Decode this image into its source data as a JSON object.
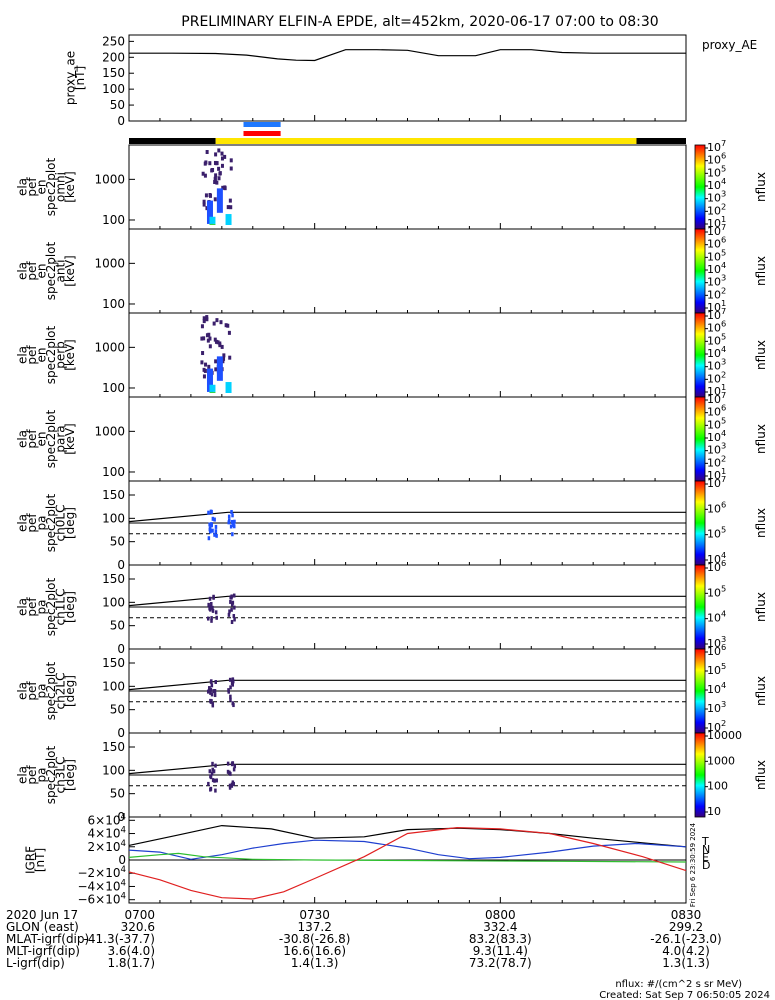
{
  "title": "PRELIMINARY ELFIN-A EPDE, alt=452km, 2020-06-17 07:00 to 08:30",
  "colors": {
    "bar_black": "#000000",
    "bar_yellow": "#ffe600",
    "bar_blue": "#1e78ff",
    "bar_red": "#ff0000",
    "spec_dark": "#3a1f6b",
    "spec_blue": "#1e50ff",
    "spec_cyan": "#00d2ff",
    "spec_green": "#34d24a",
    "grf_total": "#000000",
    "grf_n": "#1f3fcf",
    "grf_e": "#2fbf2f",
    "grf_d": "#e02020"
  },
  "panel_labels": [
    [
      "proxy_ae",
      "[nT]"
    ],
    [
      "ela",
      "pef",
      "en",
      "spec2plot",
      "omni",
      "[keV]"
    ],
    [
      "ela",
      "pef",
      "en",
      "spec2plot",
      "anti",
      "[keV]"
    ],
    [
      "ela",
      "pef",
      "en",
      "spec2plot",
      "perp",
      "[keV]"
    ],
    [
      "ela",
      "pef",
      "en",
      "spec2plot",
      "para",
      "[keV]"
    ],
    [
      "ela",
      "pef",
      "pa",
      "spec2plot",
      "ch0LC",
      "[deg]"
    ],
    [
      "ela",
      "pef",
      "pa",
      "spec2plot",
      "ch1LC",
      "[deg]"
    ],
    [
      "ela",
      "pef",
      "pa",
      "spec2plot",
      "ch2LC",
      "[deg]"
    ],
    [
      "ela",
      "pef",
      "pa",
      "spec2plot",
      "ch3LC",
      "[deg]"
    ],
    [
      "IGRF",
      "[nT]"
    ]
  ],
  "right_labels": {
    "proxy_ae": "proxy_AE",
    "nflux": "nflux",
    "grf_legend": [
      "T",
      "N",
      "E",
      "D"
    ],
    "side_stamp": "Fri Sep  6 23:30:59 2024"
  },
  "colorbars": [
    {
      "labels": [
        "10^7",
        "10^6",
        "10^5",
        "10^4",
        "10^3",
        "10^2",
        "10^1"
      ]
    },
    {
      "labels": [
        "10^7",
        "10^6",
        "10^5",
        "10^4",
        "10^3",
        "10^2",
        "10^1"
      ]
    },
    {
      "labels": [
        "10^7",
        "10^6",
        "10^5",
        "10^4",
        "10^3",
        "10^2",
        "10^1"
      ]
    },
    {
      "labels": [
        "10^7",
        "10^6",
        "10^5",
        "10^4",
        "10^3",
        "10^2",
        "10^1"
      ]
    },
    {
      "labels": [
        "10^7",
        "10^6",
        "10^5",
        "10^4"
      ]
    },
    {
      "labels": [
        "10^6",
        "10^5",
        "10^4",
        "10^3"
      ]
    },
    {
      "labels": [
        "10^6",
        "10^5",
        "10^4",
        "10^3",
        "10^2"
      ]
    },
    {
      "labels": [
        "10000",
        "1000",
        "100",
        "10"
      ]
    }
  ],
  "chart_data": {
    "type": "multi-panel",
    "x_ticks": [
      "0700",
      "0730",
      "0800",
      "0830"
    ],
    "proxy_ae": {
      "ylabel": "proxy_ae [nT]",
      "ylim": [
        0,
        270
      ],
      "yticks": [
        "250",
        "200",
        "150",
        "100",
        "50",
        "0"
      ],
      "t": [
        0,
        7,
        14,
        19,
        24,
        27,
        30,
        35,
        40,
        45,
        50,
        56,
        60,
        65,
        70,
        75,
        80,
        85,
        90
      ],
      "values": [
        213,
        213,
        212,
        207,
        195,
        191,
        190,
        224,
        224,
        222,
        205,
        205,
        224,
        224,
        215,
        213,
        213,
        213,
        213
      ]
    },
    "energy_panels": {
      "ylabel_unit": "[keV]",
      "yticks": [
        "1000",
        "100"
      ],
      "ylim": [
        60,
        7000
      ],
      "active_interval_min": [
        11.5,
        16.5
      ]
    },
    "pitch_angle_panels": {
      "ylabel_unit": "[deg]",
      "yticks": [
        "150",
        "100",
        "50",
        "0"
      ],
      "ylim": [
        0,
        180
      ],
      "loss_cone_line": {
        "t": [
          0,
          16,
          90
        ],
        "values": [
          93,
          113,
          113
        ]
      },
      "horizontal_lines": [
        113,
        90
      ],
      "dashed_line": 67
    },
    "igrf": {
      "ylabel": "IGRF [nT]",
      "yticks": [
        "6×10^4",
        "4×10^4",
        "2×10^4",
        "0",
        "−2×10^4",
        "−4×10^4",
        "−6×10^4"
      ],
      "ylim": [
        -65000,
        65000
      ],
      "series": [
        {
          "name": "T",
          "t": [
            0,
            8,
            15,
            23,
            30,
            38,
            45,
            53,
            60,
            68,
            75,
            83,
            90
          ],
          "values": [
            22000,
            38000,
            52000,
            47000,
            33000,
            35000,
            46000,
            48000,
            46000,
            40000,
            33000,
            26000,
            20000
          ]
        },
        {
          "name": "N",
          "t": [
            0,
            5,
            10,
            15,
            20,
            25,
            30,
            38,
            45,
            50,
            55,
            60,
            68,
            75,
            82,
            90
          ],
          "values": [
            15000,
            12000,
            1000,
            8000,
            18000,
            25000,
            30000,
            28000,
            18000,
            8000,
            2000,
            4000,
            12000,
            21000,
            25000,
            20000
          ]
        },
        {
          "name": "E",
          "t": [
            0,
            5,
            8,
            12,
            20,
            30,
            50,
            70,
            90
          ],
          "values": [
            4000,
            8000,
            10000,
            5000,
            1000,
            0,
            -1000,
            -2000,
            -3000
          ]
        },
        {
          "name": "D",
          "t": [
            0,
            5,
            10,
            15,
            20,
            25,
            30,
            38,
            45,
            53,
            60,
            68,
            75,
            83,
            90
          ],
          "values": [
            -18000,
            -30000,
            -46000,
            -57000,
            -59000,
            -48000,
            -28000,
            5000,
            40000,
            49000,
            47000,
            40000,
            25000,
            5000,
            -16000
          ]
        }
      ]
    }
  },
  "footer": {
    "rows": [
      {
        "label": "2020 Jun 17",
        "values": [
          "0700",
          "0730",
          "0800",
          "0830"
        ]
      },
      {
        "label": "GLON (east)",
        "values": [
          "320.6",
          "137.2",
          "332.4",
          "299.2"
        ]
      },
      {
        "label": "MLAT-igrf(dip)",
        "values": [
          "-41.3(-37.7)",
          "-30.8(-26.8)",
          "83.2(83.3)",
          "-26.1(-23.0)"
        ]
      },
      {
        "label": "MLT-igrf(dip)",
        "values": [
          "3.6(4.0)",
          "16.6(16.6)",
          "9.3(11.4)",
          "4.0(4.2)"
        ]
      },
      {
        "label": "L-igrf(dip)",
        "values": [
          "1.8(1.7)",
          "1.4(1.3)",
          "73.2(78.7)",
          "1.3(1.3)"
        ]
      }
    ],
    "units": "nflux: #/(cm^2 s sr MeV)",
    "created": "Created: Sat Sep  7 06:50:05 2024"
  }
}
